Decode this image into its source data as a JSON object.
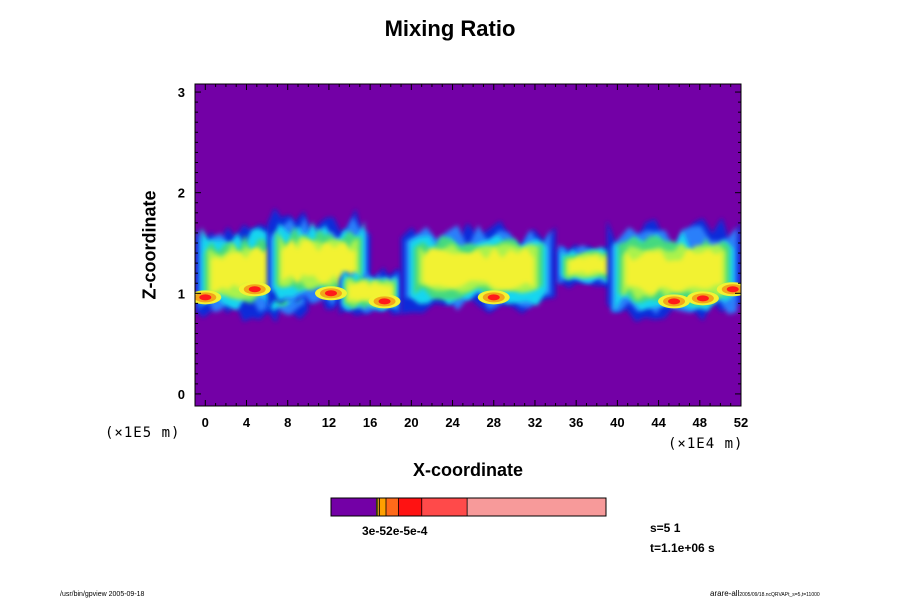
{
  "chart_data": {
    "type": "heatmap",
    "title": "Mixing Ratio",
    "xlabel": "X-coordinate",
    "ylabel": "Z-coordinate",
    "x_unit": "(×1E4 m)",
    "z_unit": "(×1E5 m)",
    "x_ticks": [
      "0",
      "4",
      "8",
      "12",
      "16",
      "20",
      "24",
      "28",
      "32",
      "36",
      "40",
      "44",
      "48",
      "52"
    ],
    "y_ticks": [
      "0",
      "1",
      "2",
      "3"
    ],
    "xlim": [
      -1,
      52
    ],
    "ylim": [
      -0.12,
      3.08
    ],
    "background_color": "#7300a6",
    "level_colors": [
      "#7300a6",
      "#0b2bd9",
      "#2b7ffa",
      "#19d6f0",
      "#45d97f",
      "#a9f24d",
      "#f2f233",
      "#f2a61a",
      "#ff1a1a"
    ],
    "cloud_band": [
      {
        "x0": -1,
        "x1": 10,
        "zlo": 0.82,
        "zhi": 1.63
      },
      {
        "x0": 6,
        "x1": 16,
        "zlo": 0.92,
        "zhi": 1.7
      },
      {
        "x0": 13,
        "x1": 19,
        "zlo": 0.82,
        "zhi": 1.2
      },
      {
        "x0": 19,
        "x1": 34,
        "zlo": 0.88,
        "zhi": 1.6
      },
      {
        "x0": 34,
        "x1": 43,
        "zlo": 1.1,
        "zhi": 1.45
      },
      {
        "x0": 39,
        "x1": 52,
        "zlo": 0.82,
        "zhi": 1.6
      }
    ],
    "max_spots": [
      {
        "x": 0.0,
        "z": 0.96
      },
      {
        "x": 4.8,
        "z": 1.04
      },
      {
        "x": 12.2,
        "z": 1.0
      },
      {
        "x": 17.4,
        "z": 0.92
      },
      {
        "x": 28.0,
        "z": 0.96
      },
      {
        "x": 48.3,
        "z": 0.95
      },
      {
        "x": 45.5,
        "z": 0.92
      },
      {
        "x": 51.2,
        "z": 1.04
      }
    ],
    "colorbar": {
      "segments": [
        {
          "from": 0.0,
          "to": 0.165,
          "color": "#7300a6"
        },
        {
          "from": 0.165,
          "to": 0.17,
          "color": "#f2f233"
        },
        {
          "from": 0.17,
          "to": 0.176,
          "color": "#f2a61a"
        },
        {
          "from": 0.176,
          "to": 0.2,
          "color": "#ffa000"
        },
        {
          "from": 0.2,
          "to": 0.245,
          "color": "#ff6a1a"
        },
        {
          "from": 0.245,
          "to": 0.33,
          "color": "#ff1212"
        },
        {
          "from": 0.33,
          "to": 0.495,
          "color": "#ff4a4a"
        },
        {
          "from": 0.495,
          "to": 1.0,
          "color": "#f79a9a"
        }
      ],
      "labels": "3e-52e-5e-4"
    },
    "s_info": "s=5 1",
    "t_info": "t=1.1e+06 s"
  },
  "footer": {
    "left": "/usr/bin/gpview 2005-09-18",
    "right_main": "arare-all",
    "right_sub": "2005/09/18.ncQRVAPt_s=5,t=11000"
  }
}
